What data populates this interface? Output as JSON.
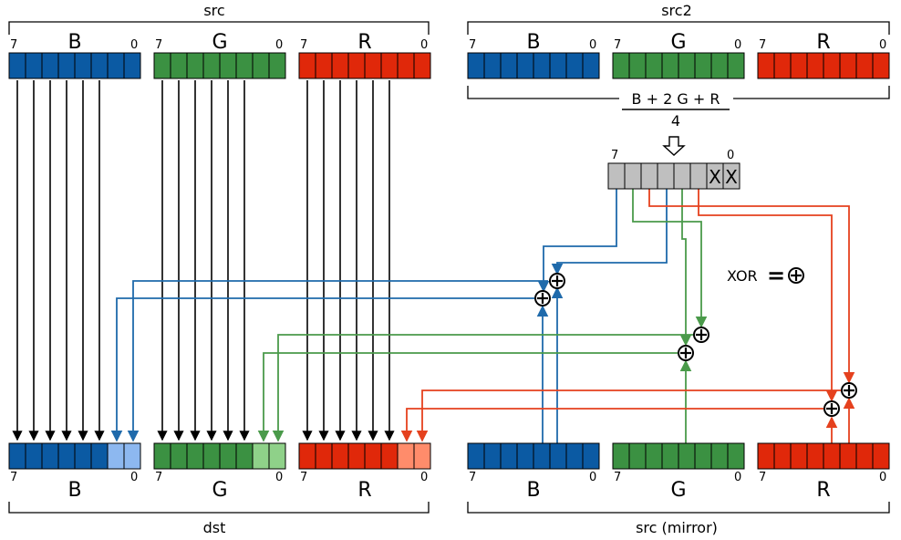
{
  "groups": {
    "src": "src",
    "src2": "src2",
    "dst": "dst",
    "mirror": "src (mirror)"
  },
  "bit_hi": "7",
  "bit_lo": "0",
  "channels": {
    "b": "B",
    "g": "G",
    "r": "R"
  },
  "formula": {
    "numerator": "B + 2 G + R",
    "denominator": "4"
  },
  "mask": {
    "hi": "7",
    "lo": "0",
    "x": "X"
  },
  "legend": {
    "xor": "XOR",
    "eq": "="
  },
  "colors": {
    "blue": "#0b5aa3",
    "green": "#3b9142",
    "red": "#e0280a",
    "light_blue": "#8db8f0",
    "light_green": "#8fd189",
    "light_red": "#ff8c6b",
    "gray": "#bfbfbf",
    "wire_blue": "#1f6aab",
    "wire_green": "#4a9a4a",
    "wire_red": "#e5411e"
  }
}
